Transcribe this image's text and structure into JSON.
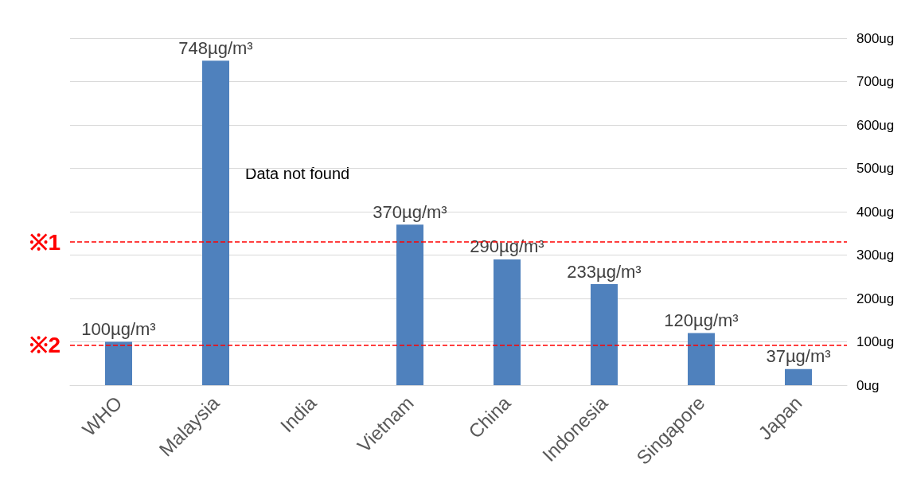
{
  "chart_data": {
    "type": "bar",
    "categories": [
      "WHO",
      "Malaysia",
      "India",
      "Vietnam",
      "China",
      "Indonesia",
      "Singapore",
      "Japan"
    ],
    "values": [
      100,
      748,
      null,
      370,
      290,
      233,
      120,
      37
    ],
    "value_labels": [
      "100µg/m³",
      "748µg/m³",
      null,
      "370µg/m³",
      "290µg/m³",
      "233µg/m³",
      "120µg/m³",
      "37µg/m³"
    ],
    "color": "#4f81bd",
    "ylim": [
      0,
      800
    ],
    "yticks": [
      {
        "value": 0,
        "label": "0ug"
      },
      {
        "value": 100,
        "label": "100ug"
      },
      {
        "value": 200,
        "label": "200ug"
      },
      {
        "value": 300,
        "label": "300ug"
      },
      {
        "value": 400,
        "label": "400ug"
      },
      {
        "value": 500,
        "label": "500ug"
      },
      {
        "value": 600,
        "label": "600ug"
      },
      {
        "value": 700,
        "label": "700ug"
      },
      {
        "value": 800,
        "label": "800ug"
      }
    ],
    "grid": "y",
    "ref_lines": [
      {
        "axis": "y",
        "value": 330,
        "label": "※1",
        "color": "#ff0000",
        "line_style": "dashed"
      },
      {
        "axis": "y",
        "value": 92,
        "label": "※2",
        "color": "#ff0000",
        "line_style": "dashed"
      }
    ],
    "annotations": [
      "Data not found"
    ]
  }
}
